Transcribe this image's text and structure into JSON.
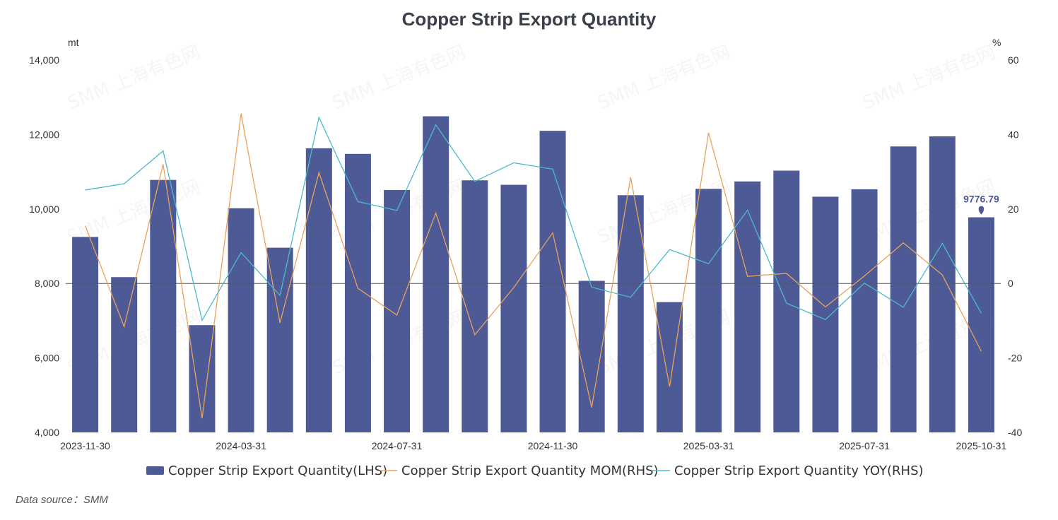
{
  "title": "Copper Strip Export Quantity",
  "source": "Data source：SMM",
  "colors": {
    "bar": "#4e5a96",
    "mom": "#e8a25a",
    "yoy": "#4bbbcc",
    "zero_line": "#555555"
  },
  "chart_data": {
    "type": "bar",
    "title": "Copper Strip Export Quantity",
    "categories": [
      "2023-11-30",
      "2023-12-31",
      "2024-01-31",
      "2024-02-29",
      "2024-03-31",
      "2024-04-30",
      "2024-05-31",
      "2024-06-30",
      "2024-07-31",
      "2024-08-31",
      "2024-09-30",
      "2024-10-31",
      "2024-11-30",
      "2024-12-31",
      "2025-01-31",
      "2025-02-28",
      "2025-03-31",
      "2025-04-30",
      "2025-05-31",
      "2025-06-30",
      "2025-07-31",
      "2025-08-31",
      "2025-09-30",
      "2025-10-31"
    ],
    "x_tick_labels": [
      "2023-11-30",
      "2024-03-31",
      "2024-07-31",
      "2024-11-30",
      "2025-03-31",
      "2025-07-31",
      "2025-10-31"
    ],
    "left_axis": {
      "unit": "mt",
      "ylim": [
        4000,
        14000
      ],
      "ticks": [
        "4,000",
        "6,000",
        "8,000",
        "10,000",
        "12,000",
        "14,000"
      ]
    },
    "right_axis": {
      "unit": "%",
      "ylim": [
        -40,
        60
      ],
      "ticks": [
        "-40",
        "-20",
        "0",
        "20",
        "40",
        "60"
      ]
    },
    "series": [
      {
        "name": "Copper Strip Export Quantity(LHS)",
        "type": "bar",
        "axis": "left",
        "values": [
          9250,
          8170,
          10780,
          6880,
          10020,
          8960,
          11630,
          11480,
          10510,
          12490,
          10770,
          10650,
          12100,
          8070,
          10370,
          7500,
          10540,
          10740,
          11030,
          10330,
          10530,
          11680,
          11950,
          9776.79
        ]
      },
      {
        "name": "Copper Strip Export Quantity MOM(RHS)",
        "type": "line",
        "axis": "right",
        "values": [
          15.5,
          -11.6,
          32.0,
          -36.2,
          45.6,
          -10.6,
          29.8,
          -1.3,
          -8.5,
          18.9,
          -13.8,
          -1.1,
          13.6,
          -33.3,
          28.5,
          -27.7,
          40.5,
          1.9,
          2.7,
          -6.3,
          2.0,
          10.9,
          2.3,
          -18.2
        ]
      },
      {
        "name": "Copper Strip Export Quantity YOY(RHS)",
        "type": "line",
        "axis": "right",
        "values": [
          25.1,
          26.8,
          35.6,
          -9.9,
          8.3,
          -3.2,
          44.6,
          22.0,
          19.6,
          42.6,
          27.4,
          32.4,
          30.7,
          -1.0,
          -3.7,
          9.1,
          5.3,
          19.7,
          -5.3,
          -9.7,
          0.1,
          -6.4,
          10.8,
          -8.0
        ]
      }
    ],
    "data_labels": [
      {
        "series": 0,
        "index": 23,
        "text": "9776.79"
      }
    ],
    "legend_position": "bottom",
    "grid": false
  }
}
